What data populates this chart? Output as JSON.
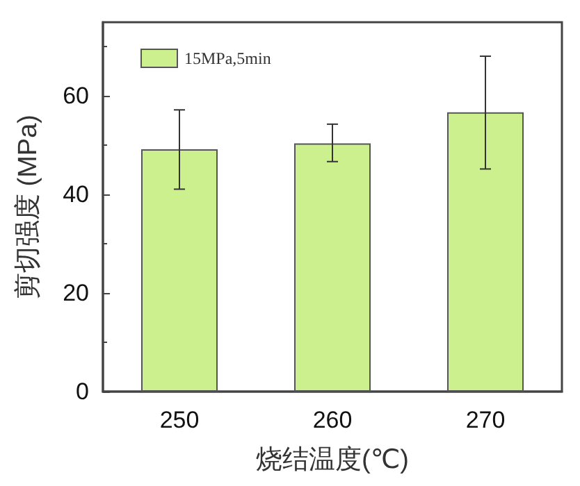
{
  "chart_data": {
    "type": "bar",
    "xlabel": "烧结温度(℃)",
    "ylabel": "剪切强度 (MPa)",
    "categories": [
      "250",
      "260",
      "270"
    ],
    "series": [
      {
        "name": "15MPa,5min",
        "color": "#cdf08f",
        "values": [
          49.2,
          50.4,
          56.7
        ],
        "errors": [
          [
            41.1,
            57.2
          ],
          [
            46.7,
            54.3
          ],
          [
            45.2,
            68.1
          ]
        ]
      }
    ],
    "ylim": [
      0,
      75
    ],
    "yticks": [
      0,
      20,
      40,
      60
    ],
    "legend": "top left",
    "grid": false
  }
}
